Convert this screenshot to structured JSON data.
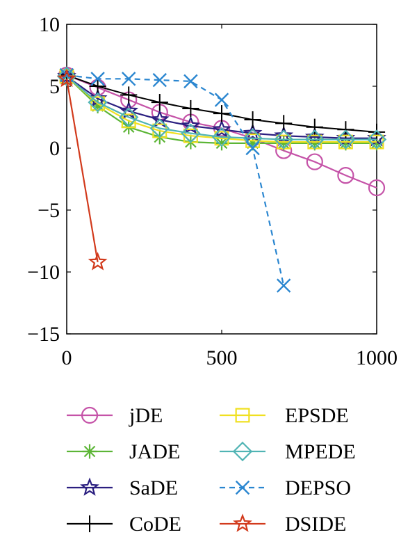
{
  "chart_data": {
    "type": "line",
    "title": "",
    "xlabel": "",
    "ylabel": "",
    "xlim": [
      0,
      1000
    ],
    "ylim": [
      -15,
      10
    ],
    "xticks": [
      0,
      500,
      1000
    ],
    "yticks": [
      10,
      5,
      0,
      -5,
      -10,
      -15
    ],
    "xtick_labels": [
      "0",
      "500",
      "1000"
    ],
    "ytick_labels": [
      "10",
      "5",
      "0",
      "−5",
      "−10",
      "−15"
    ],
    "grid": false,
    "legend_position": "bottom",
    "series": [
      {
        "name": "jDE",
        "color": "#c553a8",
        "marker": "circle",
        "dash": "solid",
        "x": [
          0,
          100,
          200,
          300,
          400,
          500,
          600,
          700,
          800,
          900,
          1000
        ],
        "y": [
          5.9,
          4.9,
          3.9,
          2.9,
          2.1,
          1.6,
          0.8,
          -0.2,
          -1.1,
          -2.2,
          -3.2
        ]
      },
      {
        "name": "JADE",
        "color": "#5cb536",
        "marker": "asterisk",
        "dash": "solid",
        "x": [
          0,
          100,
          200,
          300,
          400,
          500,
          600,
          700,
          800,
          900,
          1000
        ],
        "y": [
          5.8,
          3.4,
          1.7,
          0.9,
          0.5,
          0.4,
          0.4,
          0.4,
          0.4,
          0.4,
          0.4
        ]
      },
      {
        "name": "SaDE",
        "color": "#2b1f80",
        "marker": "star",
        "dash": "solid",
        "x": [
          0,
          100,
          200,
          300,
          400,
          500,
          600,
          700,
          800,
          900,
          1000
        ],
        "y": [
          5.8,
          4.0,
          3.0,
          2.3,
          1.8,
          1.5,
          1.2,
          1.0,
          0.9,
          0.8,
          0.8
        ]
      },
      {
        "name": "CoDE",
        "color": "#000000",
        "marker": "plus",
        "dash": "solid",
        "x": [
          0,
          100,
          200,
          300,
          400,
          500,
          600,
          700,
          800,
          900,
          1000
        ],
        "y": [
          5.9,
          5.0,
          4.3,
          3.7,
          3.2,
          2.8,
          2.3,
          2.0,
          1.7,
          1.5,
          1.3
        ]
      },
      {
        "name": "EPSDE",
        "color": "#f0e020",
        "marker": "square",
        "dash": "solid",
        "x": [
          0,
          100,
          200,
          300,
          400,
          500,
          600,
          700,
          800,
          900,
          1000
        ],
        "y": [
          5.8,
          3.6,
          2.2,
          1.4,
          1.0,
          0.8,
          0.6,
          0.5,
          0.5,
          0.5,
          0.5
        ]
      },
      {
        "name": "MPEDE",
        "color": "#50b4b4",
        "marker": "diamond",
        "dash": "solid",
        "x": [
          0,
          100,
          200,
          300,
          400,
          500,
          600,
          700,
          800,
          900,
          1000
        ],
        "y": [
          5.8,
          3.7,
          2.5,
          1.6,
          1.2,
          0.9,
          0.8,
          0.7,
          0.7,
          0.7,
          0.7
        ]
      },
      {
        "name": "DEPSO",
        "color": "#2a86d0",
        "marker": "x",
        "dash": "dashed",
        "x": [
          0,
          100,
          200,
          300,
          400,
          500,
          600,
          700
        ],
        "y": [
          5.9,
          5.6,
          5.6,
          5.5,
          5.4,
          3.9,
          0.0,
          -11.1
        ]
      },
      {
        "name": "DSIDE",
        "color": "#d23a1c",
        "marker": "star",
        "dash": "solid",
        "x": [
          0,
          100
        ],
        "y": [
          5.6,
          -9.2
        ]
      }
    ]
  }
}
